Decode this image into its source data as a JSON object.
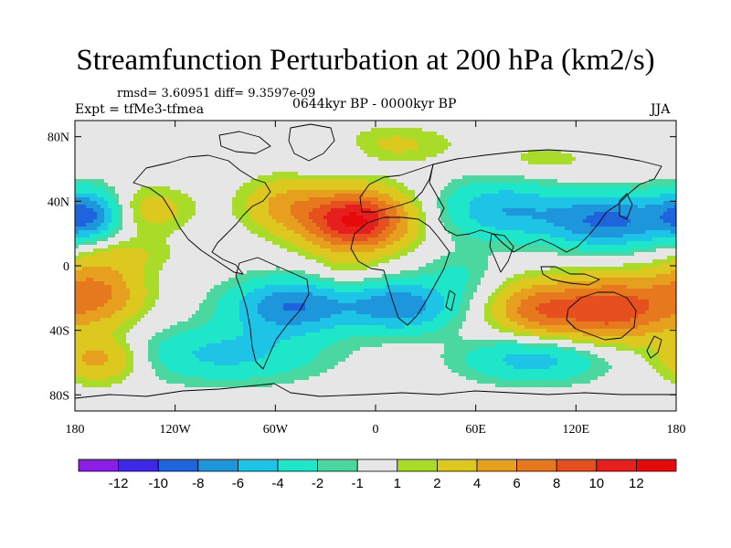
{
  "title": "Streamfunction Perturbation at 200 hPa (km2/s)",
  "subtitle": "rmsd= 3.60951 diff= 9.3597e-09",
  "left_label": "Expt = tfMe3-tfmea",
  "center_label": "0644kyr BP - 0000kyr BP",
  "right_label": "JJA",
  "map": {
    "projection": "cylindrical-equidistant",
    "lon_range": [
      -180,
      180
    ],
    "lat_range": [
      -90,
      90
    ],
    "x_ticks": [
      {
        "lon": -180,
        "label": "180"
      },
      {
        "lon": -120,
        "label": "120W"
      },
      {
        "lon": -60,
        "label": "60W"
      },
      {
        "lon": 0,
        "label": "0"
      },
      {
        "lon": 60,
        "label": "60E"
      },
      {
        "lon": 120,
        "label": "120E"
      },
      {
        "lon": 180,
        "label": "180"
      }
    ],
    "y_ticks": [
      {
        "lat": 80,
        "label": "80N"
      },
      {
        "lat": 40,
        "label": "40N"
      },
      {
        "lat": 0,
        "label": "0"
      },
      {
        "lat": -40,
        "label": "40S"
      },
      {
        "lat": -80,
        "label": "80S"
      }
    ],
    "features": [
      {
        "name": "subtropical-atlantic-high",
        "lon": -12,
        "lat": 28,
        "amp": 12.5,
        "slon": 22,
        "slat": 13
      },
      {
        "name": "australian-high",
        "lon": 140,
        "lat": -27,
        "amp": 9.5,
        "slon": 25,
        "slat": 14
      },
      {
        "name": "indian-ocean-high",
        "lon": 95,
        "lat": -27,
        "amp": 6,
        "slon": 18,
        "slat": 12
      },
      {
        "name": "south-pacific-high",
        "lon": -168,
        "lat": -17,
        "amp": 6.5,
        "slon": 20,
        "slat": 14
      },
      {
        "name": "southwest-pacific-high",
        "lon": -165,
        "lat": -58,
        "amp": 5,
        "slon": 18,
        "slat": 10
      },
      {
        "name": "north-atlantic-high",
        "lon": -55,
        "lat": 38,
        "amp": 4,
        "slon": 18,
        "slat": 12
      },
      {
        "name": "north-pacific-east-high",
        "lon": -135,
        "lat": 35,
        "amp": 3,
        "slon": 18,
        "slat": 10
      },
      {
        "name": "arctic-europe-high",
        "lon": 10,
        "lat": 75,
        "amp": 2.5,
        "slon": 25,
        "slat": 8
      },
      {
        "name": "west-africa-high",
        "lon": -18,
        "lat": -5,
        "amp": 1.5,
        "slon": 15,
        "slat": 8
      },
      {
        "name": "pacific-equator-high",
        "lon": -150,
        "lat": 8,
        "amp": 2,
        "slon": 20,
        "slat": 8
      },
      {
        "name": "siberia-high",
        "lon": 100,
        "lat": 65,
        "amp": 1.5,
        "slon": 25,
        "slat": 8
      },
      {
        "name": "south-american-low",
        "lon": -50,
        "lat": -25,
        "amp": -8,
        "slon": 26,
        "slat": 12
      },
      {
        "name": "south-atlantic-low",
        "lon": 15,
        "lat": -25,
        "amp": -7.5,
        "slon": 22,
        "slat": 11
      },
      {
        "name": "asian-low",
        "lon": 140,
        "lat": 28,
        "amp": -8.5,
        "slon": 28,
        "slat": 12
      },
      {
        "name": "central-asia-low",
        "lon": 75,
        "lat": 35,
        "amp": -5.5,
        "slon": 25,
        "slat": 13
      },
      {
        "name": "north-pacific-low",
        "lon": -172,
        "lat": 32,
        "amp": -7.5,
        "slon": 14,
        "slat": 11
      },
      {
        "name": "southern-ocean-low",
        "lon": -90,
        "lat": -55,
        "amp": -4.5,
        "slon": 40,
        "slat": 12
      },
      {
        "name": "south-indian-low",
        "lon": 95,
        "lat": -58,
        "amp": -5,
        "slon": 30,
        "slat": 10
      },
      {
        "name": "high-arctic-low",
        "lon": -30,
        "lat": 70,
        "amp": -1.5,
        "slon": 20,
        "slat": 8
      },
      {
        "name": "east-africa-low",
        "lon": 50,
        "lat": -5,
        "amp": -2,
        "slon": 15,
        "slat": 10
      }
    ]
  },
  "colorbar": {
    "levels": [
      "-12",
      "-10",
      "-8",
      "-6",
      "-4",
      "-2",
      "-1",
      "1",
      "2",
      "4",
      "6",
      "8",
      "10",
      "12"
    ],
    "thresholds": [
      -12,
      -10,
      -8,
      -6,
      -4,
      -2,
      -1,
      1,
      2,
      4,
      6,
      8,
      10,
      12
    ],
    "colors": [
      "#8a1ee6",
      "#3c28e6",
      "#1e64dc",
      "#1e96dc",
      "#1ec4e6",
      "#1ee6c8",
      "#4ad8a0",
      "#e6e6e6",
      "#a8dc28",
      "#dcc81e",
      "#e6a01e",
      "#e6781e",
      "#e6501e",
      "#e61e1e",
      "#e60a0a"
    ]
  }
}
